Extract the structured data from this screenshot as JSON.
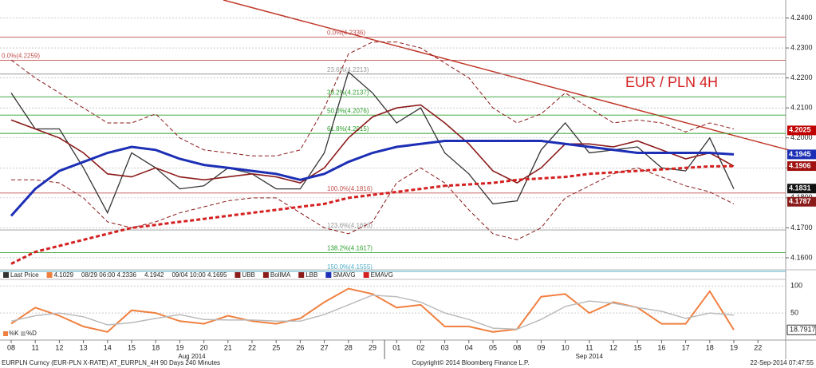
{
  "chart_data": {
    "type": "line",
    "title": "EUR / PLN 4H",
    "categories": [
      "08",
      "11",
      "12",
      "13",
      "14",
      "15",
      "18",
      "19",
      "20",
      "21",
      "22",
      "25",
      "26",
      "27",
      "28",
      "29",
      "01",
      "02",
      "03",
      "04",
      "05",
      "08",
      "09",
      "10",
      "11",
      "12",
      "15",
      "16",
      "17",
      "18",
      "19",
      "22"
    ],
    "months": [
      {
        "label": "Aug 2014",
        "index": 7.5
      },
      {
        "label": "Sep 2014",
        "index": 24
      }
    ],
    "ylim": [
      4.156,
      4.246
    ],
    "yticks": [
      {
        "value": 4.16,
        "label": "4.1600"
      },
      {
        "value": 4.17,
        "label": "4.1700"
      },
      {
        "value": 4.18,
        "label": "4.1800"
      },
      {
        "value": 4.19,
        "label": "4.1900"
      },
      {
        "value": 4.2,
        "label": "4.2000"
      },
      {
        "value": 4.21,
        "label": "4.2100"
      },
      {
        "value": 4.22,
        "label": "4.2200"
      },
      {
        "value": 4.23,
        "label": "4.2300"
      },
      {
        "value": 4.24,
        "label": "4.2400"
      }
    ],
    "grid": true,
    "series": [
      {
        "name": "Last Price",
        "color": "#333333",
        "style": "solid",
        "width": 1.3,
        "values": [
          4.215,
          4.203,
          4.203,
          4.19,
          4.175,
          4.195,
          4.19,
          4.183,
          4.184,
          4.19,
          4.188,
          4.183,
          4.183,
          4.195,
          4.222,
          4.215,
          4.205,
          4.21,
          4.195,
          4.188,
          4.178,
          4.179,
          4.196,
          4.205,
          4.195,
          4.196,
          4.197,
          4.19,
          4.189,
          4.2,
          4.183,
          null
        ]
      },
      {
        "name": "UBB",
        "color": "#8b1a1a",
        "style": "dashed",
        "width": 1,
        "values": [
          4.226,
          4.22,
          4.215,
          4.21,
          4.205,
          4.205,
          4.208,
          4.2,
          4.196,
          4.195,
          4.194,
          4.194,
          4.196,
          4.21,
          4.228,
          4.232,
          4.232,
          4.23,
          4.225,
          4.22,
          4.21,
          4.205,
          4.208,
          4.215,
          4.21,
          4.205,
          4.206,
          4.205,
          4.202,
          4.205,
          4.203,
          null
        ]
      },
      {
        "name": "BollMA",
        "color": "#8b1a1a",
        "style": "solid",
        "width": 1.6,
        "values": [
          4.206,
          4.203,
          4.2,
          4.195,
          4.188,
          4.187,
          4.19,
          4.187,
          4.186,
          4.187,
          4.188,
          4.187,
          4.185,
          4.19,
          4.2,
          4.207,
          4.21,
          4.211,
          4.205,
          4.198,
          4.189,
          4.185,
          4.19,
          4.198,
          4.198,
          4.197,
          4.199,
          4.196,
          4.193,
          4.195,
          4.1906,
          null
        ]
      },
      {
        "name": "LBB",
        "color": "#8b1a1a",
        "style": "dashed",
        "width": 1,
        "values": [
          4.186,
          4.186,
          4.185,
          4.18,
          4.172,
          4.17,
          4.172,
          4.175,
          4.177,
          4.179,
          4.18,
          4.18,
          4.175,
          4.17,
          4.168,
          4.172,
          4.185,
          4.19,
          4.185,
          4.176,
          4.168,
          4.166,
          4.17,
          4.18,
          4.184,
          4.188,
          4.19,
          4.187,
          4.184,
          4.182,
          4.178,
          null
        ]
      },
      {
        "name": "SMAVG",
        "color": "#1c2fb5",
        "style": "solid",
        "width": 3,
        "values": [
          4.174,
          4.183,
          4.189,
          4.192,
          4.195,
          4.197,
          4.196,
          4.193,
          4.191,
          4.19,
          4.189,
          4.188,
          4.186,
          4.188,
          4.192,
          4.195,
          4.197,
          4.198,
          4.199,
          4.199,
          4.199,
          4.199,
          4.199,
          4.198,
          4.197,
          4.196,
          4.195,
          4.195,
          4.195,
          4.195,
          4.1945,
          null
        ]
      },
      {
        "name": "EMAVG",
        "color": "#d42020",
        "style": "dashed",
        "width": 3,
        "values": [
          4.158,
          4.162,
          4.164,
          4.166,
          4.168,
          4.17,
          4.171,
          4.172,
          4.173,
          4.174,
          4.175,
          4.176,
          4.177,
          4.178,
          4.18,
          4.181,
          4.182,
          4.183,
          4.184,
          4.1845,
          4.185,
          4.186,
          4.1865,
          4.187,
          4.188,
          4.1885,
          4.189,
          4.1895,
          4.19,
          4.1905,
          4.1906,
          null
        ]
      }
    ],
    "fib_levels": [
      {
        "label": "0.0%(4.2336)",
        "value": 4.2336,
        "color": "#c0504d"
      },
      {
        "label": "23.6%(4.2213)",
        "value": 4.2213,
        "color": "#999999"
      },
      {
        "label": "38.2%(4.2137)",
        "value": 4.2137,
        "color": "#2ca02c"
      },
      {
        "label": "50.0%(4.2076)",
        "value": 4.2076,
        "color": "#2ca02c"
      },
      {
        "label": "61.8%(4.2015)",
        "value": 4.2015,
        "color": "#2ca02c"
      },
      {
        "label": "100.0%(4.1816)",
        "value": 4.1816,
        "color": "#c0504d"
      },
      {
        "label": "123.6%(4.1693)",
        "value": 4.1693,
        "color": "#999999"
      },
      {
        "label": "138.2%(4.1617)",
        "value": 4.1617,
        "color": "#2ca02c"
      },
      {
        "label": "150.0%(4.1555)",
        "value": 4.1555,
        "color": "#4bacc6"
      },
      {
        "label": "0.0%(4.2259)",
        "value": 4.2259,
        "color": "#c0504d"
      }
    ],
    "price_tags": [
      {
        "value": 4.2025,
        "color": "#c00000"
      },
      {
        "value": 4.1945,
        "color": "#1c2fb5"
      },
      {
        "value": 4.1906,
        "color": "#a01010"
      },
      {
        "value": 4.1831,
        "color": "#111111"
      },
      {
        "value": 4.1787,
        "color": "#8b1a1a"
      }
    ],
    "legend_stats": [
      "4.1029",
      "08/29 06:00 4.2336",
      "4.1942",
      "09/04 10:00 4.1695"
    ],
    "stochastic": {
      "ylim": [
        0,
        112
      ],
      "yticks": [
        50,
        100
      ],
      "last": 18.7917,
      "series": [
        {
          "name": "%K",
          "color": "#f08040",
          "values": [
            30,
            60,
            45,
            25,
            15,
            55,
            50,
            35,
            30,
            45,
            35,
            30,
            40,
            70,
            95,
            85,
            60,
            65,
            25,
            25,
            15,
            20,
            80,
            85,
            50,
            70,
            60,
            30,
            30,
            90,
            18.7917,
            null
          ]
        },
        {
          "name": "%D",
          "color": "#bbbbbb",
          "values": [
            35,
            45,
            50,
            43,
            28,
            32,
            40,
            47,
            38,
            37,
            37,
            35,
            35,
            47,
            65,
            83,
            80,
            70,
            50,
            38,
            22,
            20,
            38,
            62,
            72,
            68,
            60,
            53,
            40,
            50,
            46,
            null
          ]
        }
      ]
    },
    "footer": {
      "left": "EURPLN Curncy (EUR-PLN X-RATE) AT_EURPLN_4H 90 Days 240 Minutes",
      "center": "Copyright© 2014 Bloomberg Finance L.P.",
      "right": "22-Sep-2014 07:47:55"
    }
  }
}
